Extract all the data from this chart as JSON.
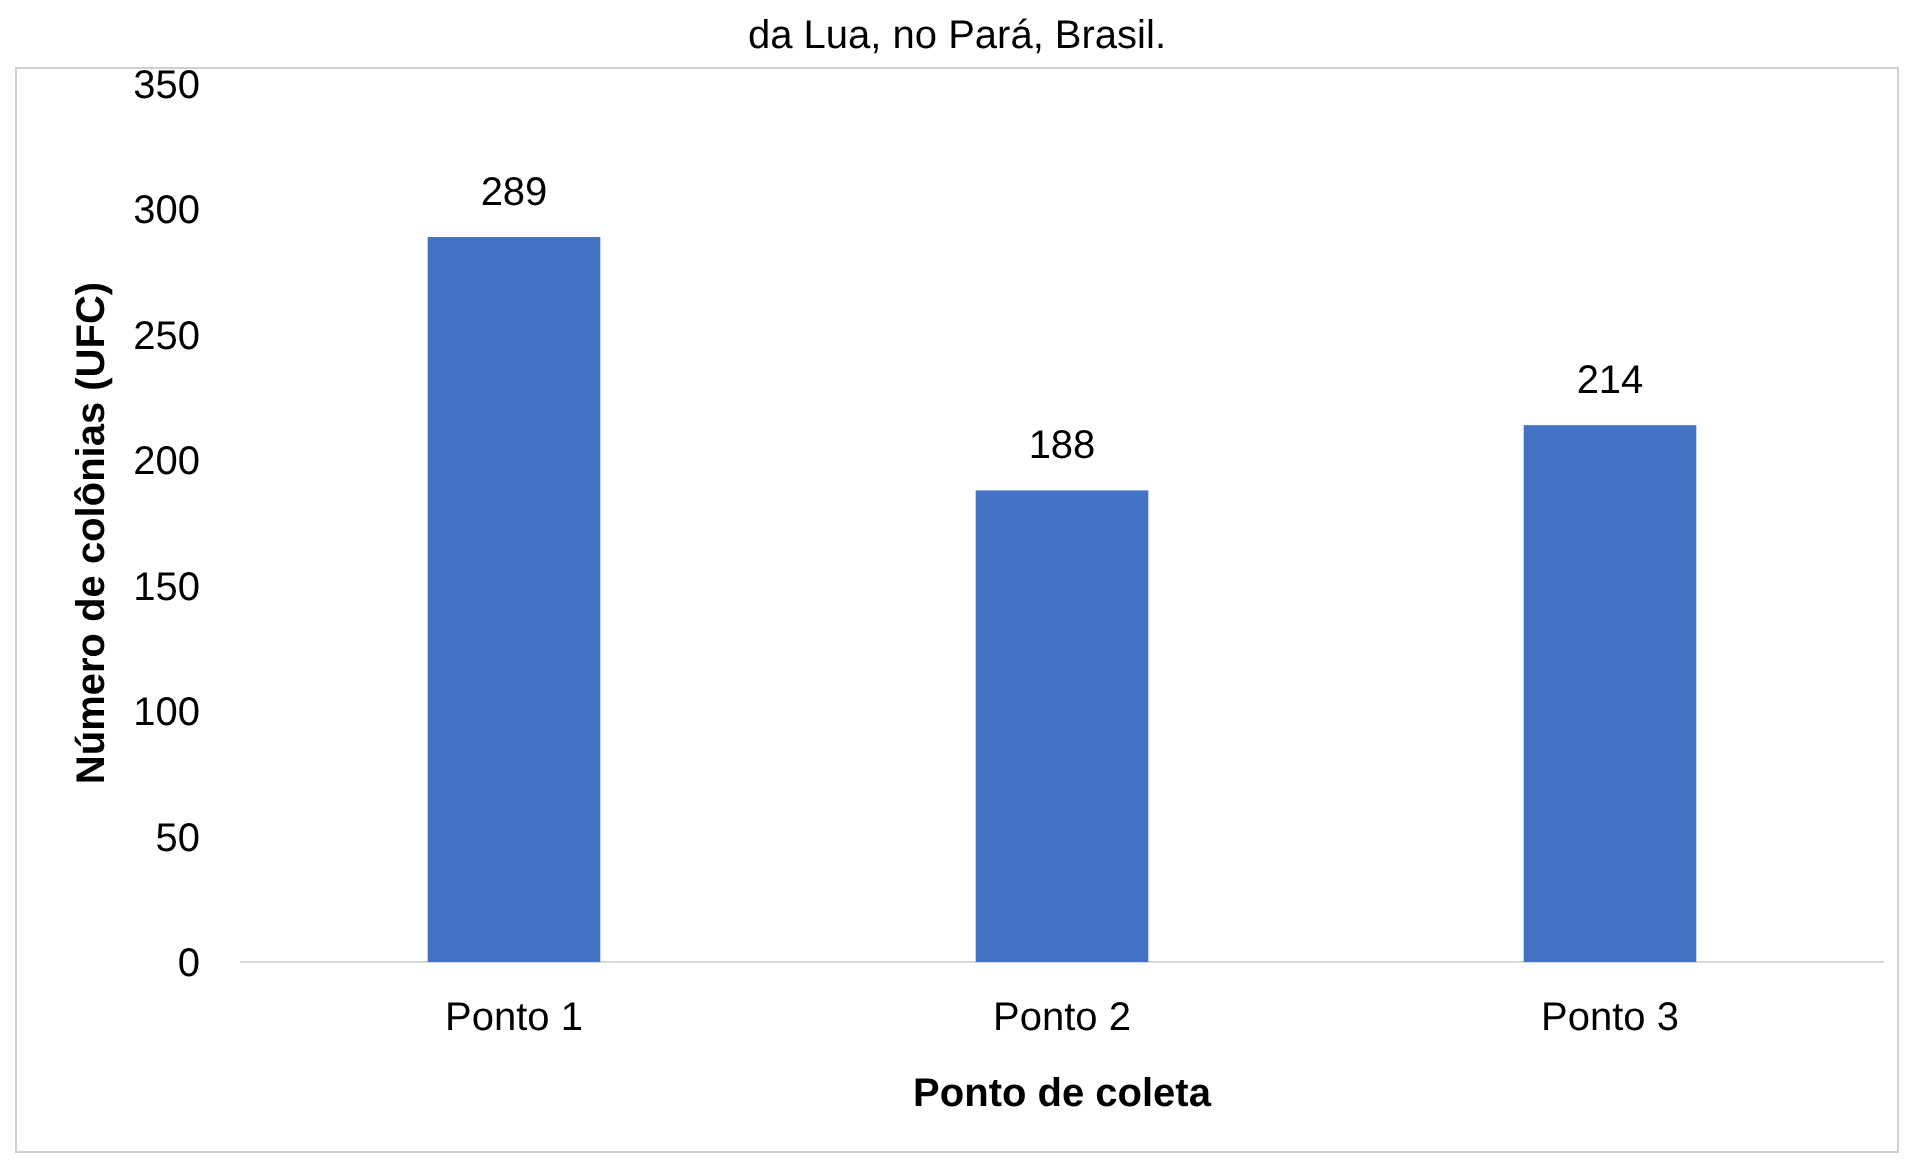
{
  "chart_data": {
    "type": "bar",
    "title": "da Lua, no Pará, Brasil.",
    "xlabel": "Ponto de coleta",
    "ylabel": "Número de colônias (UFC)",
    "categories": [
      "Ponto 1",
      "Ponto 2",
      "Ponto 3"
    ],
    "values": [
      289,
      188,
      214
    ],
    "color": "#4472c4",
    "ylim": [
      0,
      350
    ],
    "yticks": [
      0,
      50,
      100,
      150,
      200,
      250,
      300,
      350
    ],
    "data_labels": true,
    "grid": false
  }
}
